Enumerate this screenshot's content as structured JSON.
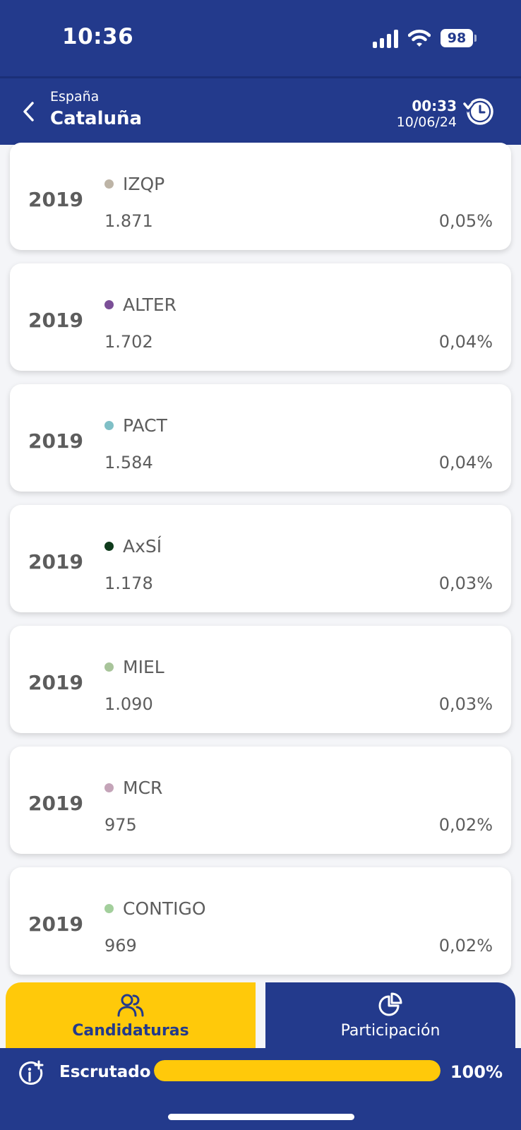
{
  "status_bar": {
    "time": "10:36",
    "battery": "98"
  },
  "header": {
    "parent": "España",
    "title": "Cataluña",
    "update_time": "00:33",
    "update_date": "10/06/24"
  },
  "results": [
    {
      "year": "2019",
      "party": "IZQP",
      "votes": "1.871",
      "percent": "0,05%",
      "color": "#bdb4a6"
    },
    {
      "year": "2019",
      "party": "ALTER",
      "votes": "1.702",
      "percent": "0,04%",
      "color": "#7b4f97"
    },
    {
      "year": "2019",
      "party": "PACT",
      "votes": "1.584",
      "percent": "0,04%",
      "color": "#7fbfc6"
    },
    {
      "year": "2019",
      "party": "AxSÍ",
      "votes": "1.178",
      "percent": "0,03%",
      "color": "#0f3b1c"
    },
    {
      "year": "2019",
      "party": "MIEL",
      "votes": "1.090",
      "percent": "0,03%",
      "color": "#a8c49a"
    },
    {
      "year": "2019",
      "party": "MCR",
      "votes": "975",
      "percent": "0,02%",
      "color": "#c4a4b8"
    },
    {
      "year": "2019",
      "party": "CONTIGO",
      "votes": "969",
      "percent": "0,02%",
      "color": "#a3cf9c"
    }
  ],
  "tabs": {
    "candidaturas": "Candidaturas",
    "participacion": "Participación"
  },
  "scrutiny": {
    "label": "Escrutado",
    "percent_label": "100%",
    "progress": 1.0
  },
  "colors": {
    "primary": "#233a8c",
    "accent": "#ffc90a"
  }
}
